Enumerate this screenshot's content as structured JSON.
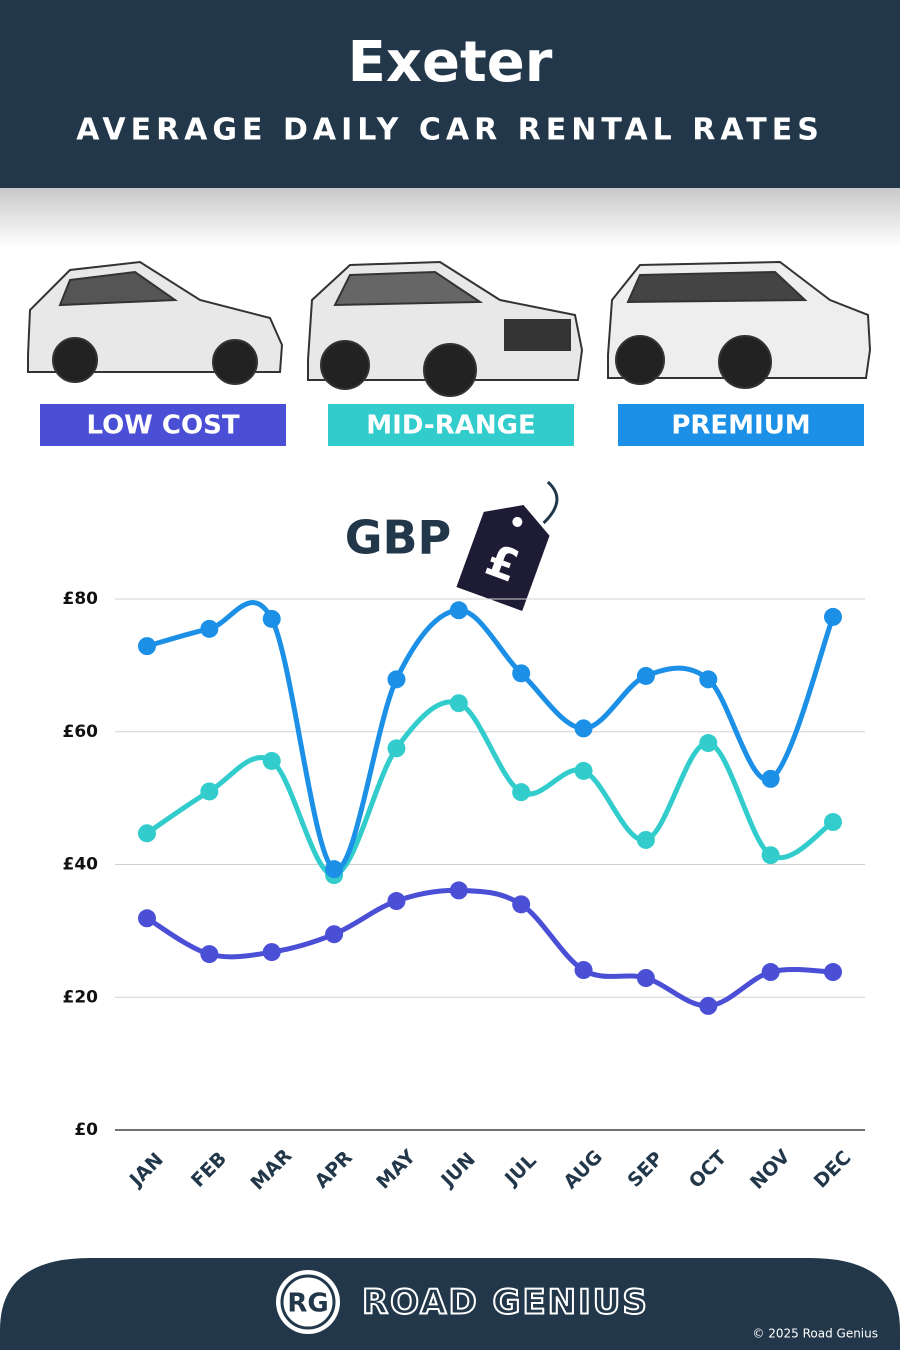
{
  "chart_data": {
    "type": "line",
    "title": "Exeter",
    "subtitle": "AVERAGE DAILY CAR RENTAL RATES",
    "currency_label": "GBP",
    "tag_symbol": "£",
    "categories": [
      "JAN",
      "FEB",
      "MAR",
      "APR",
      "MAY",
      "JUN",
      "JUL",
      "AUG",
      "SEP",
      "OCT",
      "NOV",
      "DEC"
    ],
    "series": [
      {
        "name": "LOW COST",
        "color": "#4a4fd6",
        "values": [
          31.9,
          26.5,
          26.8,
          29.5,
          34.5,
          36.1,
          34,
          24.1,
          22.9,
          18.7,
          23.8,
          23.8
        ]
      },
      {
        "name": "MID-RANGE",
        "color": "#33cccc",
        "values": [
          44.7,
          51,
          55.6,
          38.4,
          57.5,
          64.3,
          50.9,
          54.1,
          43.7,
          58.3,
          41.4,
          46.4
        ]
      },
      {
        "name": "PREMIUM",
        "color": "#1b90e6",
        "values": [
          72.9,
          75.5,
          77,
          39.3,
          67.9,
          78.3,
          68.8,
          60.5,
          68.4,
          67.9,
          52.9,
          77.3
        ]
      }
    ],
    "ylim": [
      0,
      80
    ],
    "yticks": [
      {
        "value": 0,
        "label": "£0"
      },
      {
        "value": 20,
        "label": "£20"
      },
      {
        "value": 40,
        "label": "£40"
      },
      {
        "value": 60,
        "label": "£60"
      },
      {
        "value": 80,
        "label": "£80"
      }
    ],
    "grid": true,
    "smooth": true
  },
  "footer": {
    "logo": "RG",
    "brand": "ROAD GENIUS",
    "copyright": "© 2025 Road Genius"
  }
}
